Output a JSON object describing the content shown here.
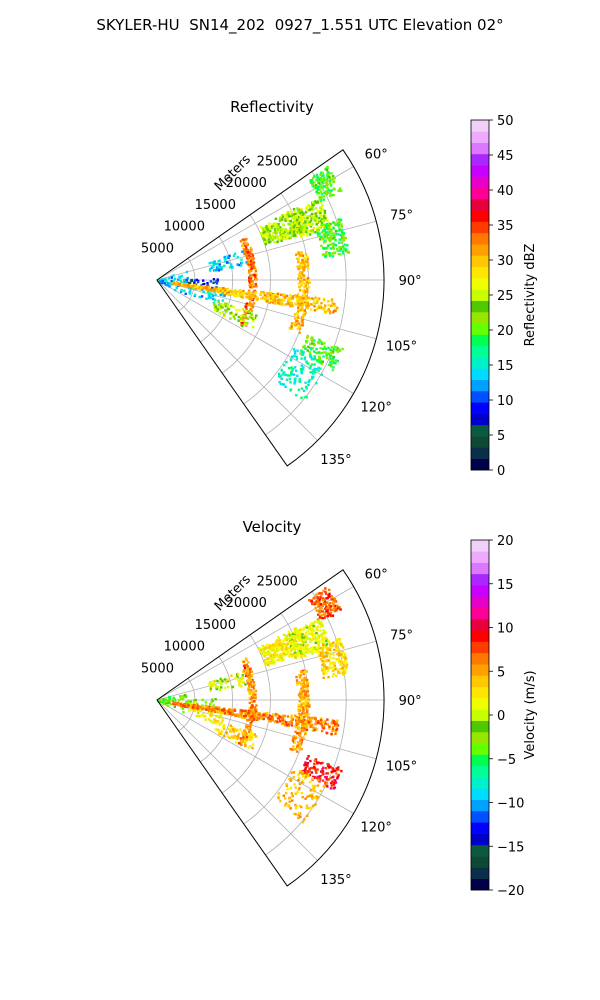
{
  "figure": {
    "title": "SKYLER-HU  SN14_202  0927_1.551 UTC Elevation 02°"
  },
  "chart_data": [
    {
      "type": "heatmap",
      "title": "Reflectivity",
      "projection": "polar-sector",
      "radial_label": "Meters",
      "radial_ticks": [
        "5000",
        "10000",
        "15000",
        "20000",
        "25000"
      ],
      "radial_tick_values": [
        5000,
        10000,
        15000,
        20000,
        25000
      ],
      "radial_range": [
        0,
        30000
      ],
      "angle_ticks": [
        "60°",
        "75°",
        "90°",
        "105°",
        "120°",
        "135°"
      ],
      "angle_tick_values": [
        60,
        75,
        90,
        105,
        120,
        135
      ],
      "angle_range": [
        55,
        145
      ],
      "grid": true,
      "colorbar": {
        "label": "Reflectivity dBZ",
        "ticks": [
          "0",
          "5",
          "10",
          "15",
          "20",
          "25",
          "30",
          "35",
          "40",
          "45",
          "50"
        ],
        "range": [
          0,
          50
        ],
        "colors": [
          "#00004a",
          "#0b2e4a",
          "#0e4a33",
          "#0a5a3e",
          "#0000c8",
          "#0000ff",
          "#0050ff",
          "#00a0ff",
          "#00dcff",
          "#00f0c8",
          "#00ff96",
          "#00ff50",
          "#64ff00",
          "#96e600",
          "#50c800",
          "#c8ff00",
          "#f0ff00",
          "#ffe600",
          "#ffc800",
          "#ffa000",
          "#ff7800",
          "#ff3c00",
          "#ff0000",
          "#e6003c",
          "#ff0096",
          "#e600c8",
          "#c800ff",
          "#aa28ff",
          "#dc78ff",
          "#eeaaff",
          "#f0d0f8"
        ]
      },
      "features": [
        {
          "r": [
            0,
            4000
          ],
          "a": [
            68,
            118
          ],
          "value": 13,
          "density": 0.45
        },
        {
          "r": [
            4000,
            8000
          ],
          "a": [
            88,
            100
          ],
          "value": 8,
          "density": 0.35
        },
        {
          "r": [
            4000,
            9000
          ],
          "a": [
            98,
            112
          ],
          "value": 14,
          "density": 0.3
        },
        {
          "r": [
            7000,
            12000
          ],
          "a": [
            70,
            80
          ],
          "value": 13,
          "density": 0.35
        },
        {
          "r": [
            12000,
            13000
          ],
          "a": [
            64,
            118
          ],
          "value": 33,
          "density": 0.75
        },
        {
          "r": [
            2000,
            24000
          ],
          "a": [
            96,
            101
          ],
          "value": 30,
          "density": 0.85
        },
        {
          "r": [
            18500,
            20000
          ],
          "a": [
            78,
            110
          ],
          "value": 30,
          "density": 0.6
        },
        {
          "r": [
            15000,
            21000
          ],
          "a": [
            62,
            72
          ],
          "value": 24,
          "density": 0.7
        },
        {
          "r": [
            19000,
            24000
          ],
          "a": [
            63,
            73
          ],
          "value": 25,
          "density": 0.6
        },
        {
          "r": [
            22000,
            25500
          ],
          "a": [
            71,
            82
          ],
          "value": 20,
          "density": 0.55
        },
        {
          "r": [
            24000,
            27000
          ],
          "a": [
            56,
            64
          ],
          "value": 20,
          "density": 0.6
        },
        {
          "r": [
            21000,
            26000
          ],
          "a": [
            110,
            117
          ],
          "value": 20,
          "density": 0.4
        },
        {
          "r": [
            8000,
            14000
          ],
          "a": [
            108,
            118
          ],
          "value": 24,
          "density": 0.35
        },
        {
          "r": [
            20000,
            25000
          ],
          "a": [
            116,
            130
          ],
          "value": 16,
          "density": 0.2
        }
      ]
    },
    {
      "type": "heatmap",
      "title": "Velocity",
      "projection": "polar-sector",
      "radial_label": "Meters",
      "radial_ticks": [
        "5000",
        "10000",
        "15000",
        "20000",
        "25000"
      ],
      "radial_tick_values": [
        5000,
        10000,
        15000,
        20000,
        25000
      ],
      "radial_range": [
        0,
        30000
      ],
      "angle_ticks": [
        "60°",
        "75°",
        "90°",
        "105°",
        "120°",
        "135°"
      ],
      "angle_tick_values": [
        60,
        75,
        90,
        105,
        120,
        135
      ],
      "angle_range": [
        55,
        145
      ],
      "grid": true,
      "colorbar": {
        "label": "Velocity (m/s)",
        "ticks": [
          "−20",
          "−15",
          "−10",
          "−5",
          "0",
          "5",
          "10",
          "15",
          "20"
        ],
        "range": [
          -20,
          20
        ],
        "colors": [
          "#00004a",
          "#0b2e4a",
          "#0e4a33",
          "#0a5a3e",
          "#0000c8",
          "#0000ff",
          "#0050ff",
          "#00a0ff",
          "#00dcff",
          "#00f0c8",
          "#00ff96",
          "#00ff50",
          "#64ff00",
          "#96e600",
          "#50c800",
          "#c8ff00",
          "#f0ff00",
          "#ffe600",
          "#ffc800",
          "#ffa000",
          "#ff7800",
          "#ff3c00",
          "#ff0000",
          "#e6003c",
          "#ff0096",
          "#e600c8",
          "#c800ff",
          "#aa28ff",
          "#dc78ff",
          "#eeaaff",
          "#f0d0f8"
        ]
      },
      "features": [
        {
          "r": [
            0,
            4000
          ],
          "a": [
            68,
            118
          ],
          "value": -3,
          "density": 0.45
        },
        {
          "r": [
            4000,
            8000
          ],
          "a": [
            88,
            100
          ],
          "value": -2,
          "density": 0.3
        },
        {
          "r": [
            4000,
            9000
          ],
          "a": [
            98,
            112
          ],
          "value": 2,
          "density": 0.3
        },
        {
          "r": [
            7000,
            12000
          ],
          "a": [
            70,
            80
          ],
          "value": 1,
          "density": 0.35
        },
        {
          "r": [
            12000,
            13000
          ],
          "a": [
            64,
            118
          ],
          "value": 6,
          "density": 0.75
        },
        {
          "r": [
            2000,
            24000
          ],
          "a": [
            96,
            101
          ],
          "value": 6,
          "density": 0.85
        },
        {
          "r": [
            18500,
            20000
          ],
          "a": [
            78,
            110
          ],
          "value": 5,
          "density": 0.6
        },
        {
          "r": [
            15000,
            21000
          ],
          "a": [
            62,
            72
          ],
          "value": 2,
          "density": 0.7
        },
        {
          "r": [
            19000,
            24000
          ],
          "a": [
            63,
            73
          ],
          "value": 1,
          "density": 0.6
        },
        {
          "r": [
            22000,
            25500
          ],
          "a": [
            71,
            82
          ],
          "value": 3,
          "density": 0.55
        },
        {
          "r": [
            24000,
            27000
          ],
          "a": [
            56,
            64
          ],
          "value": 7,
          "density": 0.6
        },
        {
          "r": [
            21000,
            26000
          ],
          "a": [
            110,
            117
          ],
          "value": 9,
          "density": 0.4
        },
        {
          "r": [
            8000,
            14000
          ],
          "a": [
            108,
            118
          ],
          "value": 3,
          "density": 0.35
        },
        {
          "r": [
            20000,
            25000
          ],
          "a": [
            116,
            130
          ],
          "value": 4,
          "density": 0.2
        }
      ]
    }
  ]
}
